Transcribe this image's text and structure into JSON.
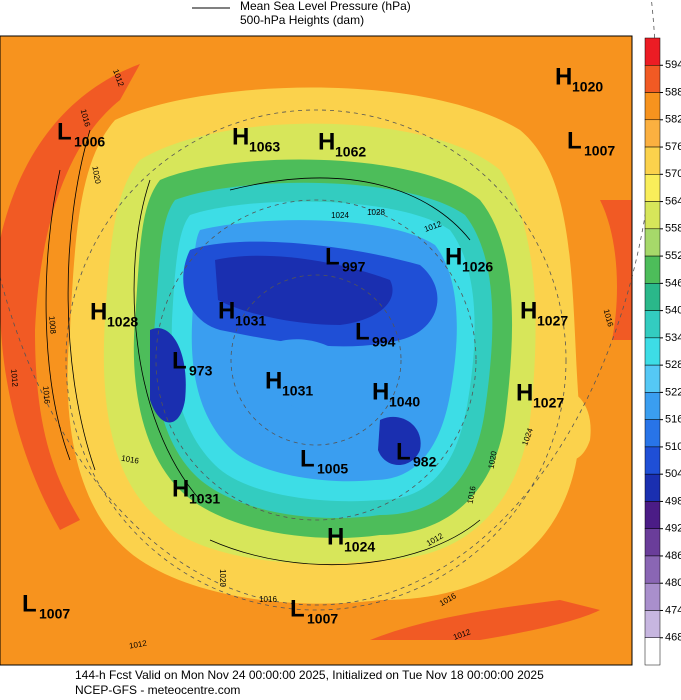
{
  "legend": {
    "mslp": "Mean Sea Level Pressure (hPa)",
    "heights": "500-hPa Heights (dam)"
  },
  "colorbar": {
    "ticks": [
      594,
      588,
      582,
      576,
      570,
      564,
      558,
      552,
      546,
      540,
      534,
      528,
      522,
      516,
      510,
      504,
      498,
      492,
      486,
      480,
      474,
      468
    ],
    "colors": [
      "#ec1c24",
      "#f15a24",
      "#f7931e",
      "#fbb040",
      "#fbd24c",
      "#f9ee5a",
      "#d7e65a",
      "#a6d96a",
      "#4dbd5a",
      "#2ab88a",
      "#33ccc0",
      "#3ddde6",
      "#55c8f5",
      "#3a9ef0",
      "#2874e8",
      "#1f4fd6",
      "#1a2fb0",
      "#4b1c86",
      "#6a3d9a",
      "#8a66b4",
      "#a98fcc",
      "#c7b6e0",
      "#ffffff"
    ]
  },
  "centers": [
    {
      "letter": "H",
      "value": 1020
    },
    {
      "letter": "L",
      "value": 1006
    },
    {
      "letter": "H",
      "value": 1063
    },
    {
      "letter": "H",
      "value": 1062
    },
    {
      "letter": "L",
      "value": 1007
    },
    {
      "letter": "L",
      "value": 997
    },
    {
      "letter": "H",
      "value": 1026
    },
    {
      "letter": "H",
      "value": 1028
    },
    {
      "letter": "H",
      "value": 1031
    },
    {
      "letter": "L",
      "value": 994
    },
    {
      "letter": "H",
      "value": 1027
    },
    {
      "letter": "L",
      "value": 973
    },
    {
      "letter": "H",
      "value": 1031
    },
    {
      "letter": "H",
      "value": 1040
    },
    {
      "letter": "H",
      "value": 1027
    },
    {
      "letter": "L",
      "value": 982
    },
    {
      "letter": "L",
      "value": 1005
    },
    {
      "letter": "H",
      "value": 1031
    },
    {
      "letter": "H",
      "value": 1024
    },
    {
      "letter": "L",
      "value": 1007
    },
    {
      "letter": "L",
      "value": 1007
    }
  ],
  "contour_labels": [
    1012,
    1016,
    1020,
    1024,
    1028,
    1012,
    1008,
    1012,
    1016,
    1016,
    1024,
    1020,
    1016,
    1012,
    1020,
    1016,
    1016,
    1012,
    1012,
    1016
  ],
  "footer": {
    "line1": "144-h Fcst Valid on Mon Nov 24 00:00:00 2025, Initialized on Tue Nov 18 00:00:00 2025",
    "line2": "NCEP-GFS  - meteocentre.com"
  }
}
